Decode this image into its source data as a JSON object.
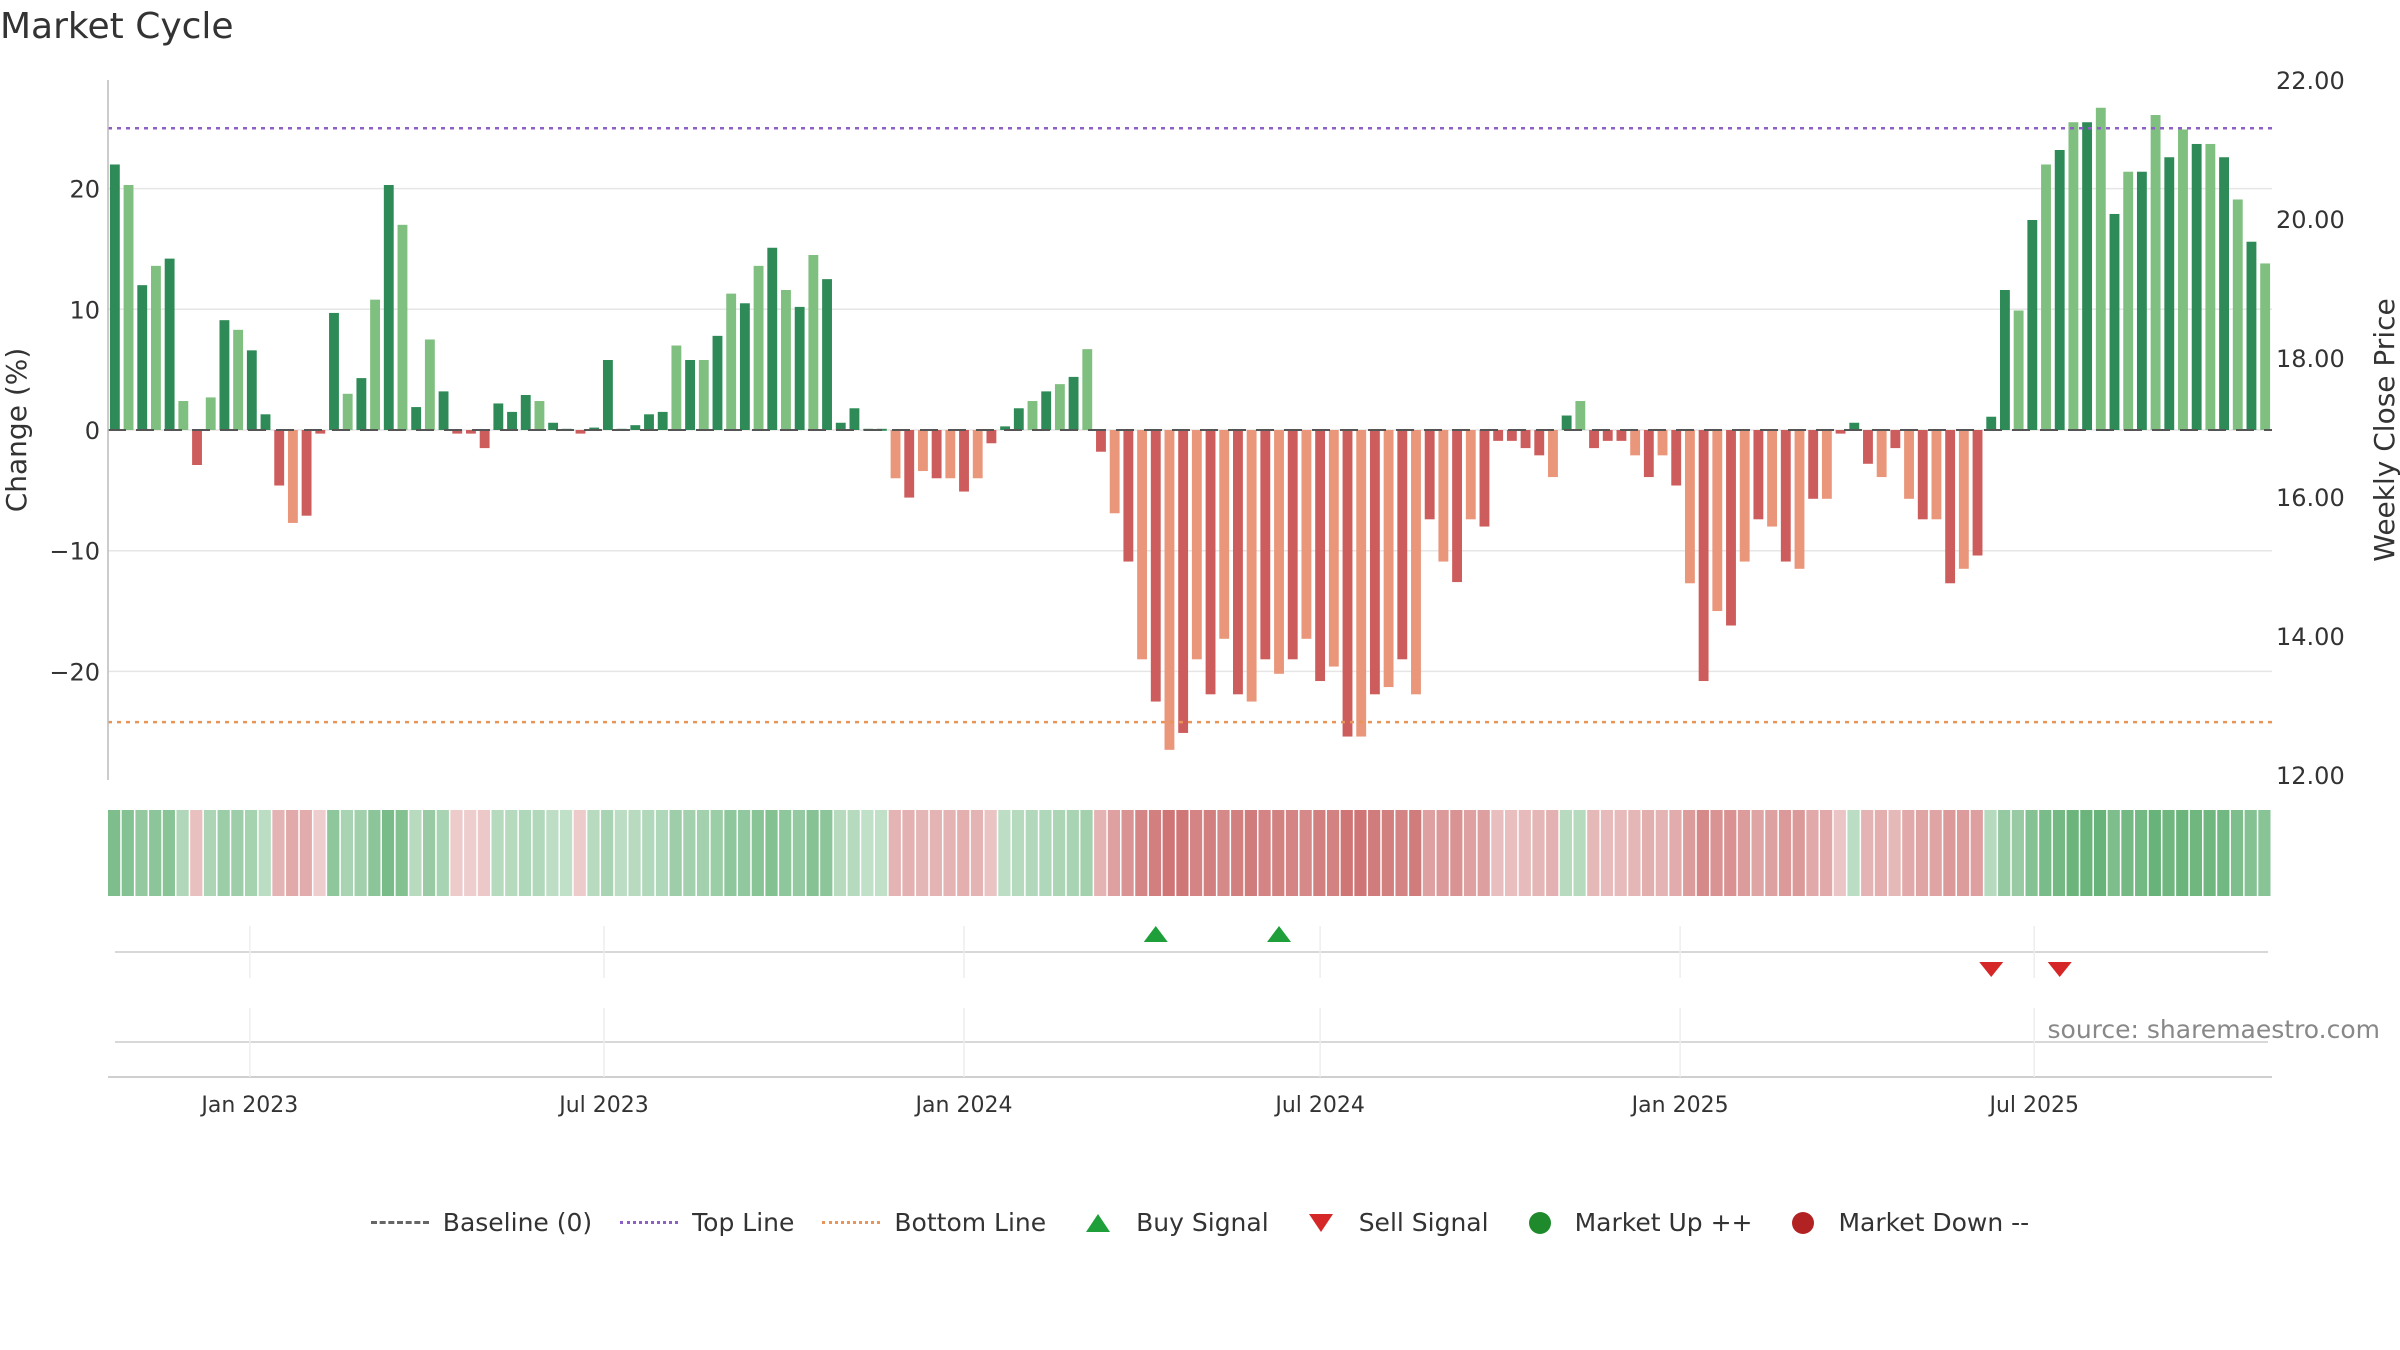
{
  "title": "Market Cycle",
  "source": "source: sharemaestro.com",
  "legend": {
    "baseline": "Baseline (0)",
    "top_line": "Top Line",
    "bottom_line": "Bottom Line",
    "buy_signal": "Buy Signal",
    "sell_signal": "Sell Signal",
    "market_up": "Market Up ++",
    "market_down": "Market Down --"
  },
  "colors": {
    "up_strong": "#2e8b57",
    "up_light": "#7fbf7f",
    "down_strong": "#cd5c5c",
    "down_light": "#e9967a",
    "top_line": "#8e5fc4",
    "bottom_line": "#e8955a",
    "buy": "#1e9f3a",
    "sell": "#d62728"
  },
  "chart_data": {
    "type": "bar",
    "title": "Market Cycle",
    "ylabel": "Change (%)",
    "y2label": "Weekly Close Price",
    "ylim": [
      -29,
      29
    ],
    "y2lim": [
      12,
      22
    ],
    "yticks": [
      -20,
      -10,
      0,
      10,
      20
    ],
    "ytick_labels": [
      "−20",
      "−10",
      "0",
      "10",
      "20"
    ],
    "y2ticks": [
      12,
      14,
      16,
      18,
      20,
      22
    ],
    "y2tick_labels": [
      "12.00",
      "14.00",
      "16.00",
      "18.00",
      "20.00",
      "22.00"
    ],
    "xticks": [
      "2023-01-01",
      "2023-07-01",
      "2024-01-01",
      "2024-07-01",
      "2025-01-01",
      "2025-07-01"
    ],
    "xtick_labels": [
      "Jan 2023",
      "Jul 2023",
      "Jan 2024",
      "Jul 2024",
      "Jan 2025",
      "Jul 2025"
    ],
    "first_week": "2022-10-24",
    "top_line": 25,
    "bottom_line": -24.2,
    "grid": true,
    "legend_position": "bottom",
    "values": [
      22,
      20.3,
      12,
      13.6,
      14.2,
      2.4,
      -2.9,
      2.7,
      9.1,
      8.3,
      6.6,
      1.3,
      -4.6,
      -7.7,
      -7.1,
      -0.3,
      9.7,
      3,
      4.3,
      10.8,
      20.3,
      17,
      1.9,
      7.5,
      3.2,
      -0.3,
      -0.3,
      -1.5,
      2.2,
      1.5,
      2.9,
      2.4,
      0.6,
      0.1,
      -0.3,
      0.2,
      5.8,
      0.1,
      0.4,
      1.3,
      1.5,
      7,
      5.8,
      5.8,
      7.8,
      11.3,
      10.5,
      13.6,
      15.1,
      11.6,
      10.2,
      14.5,
      12.5,
      0.6,
      1.8,
      0.1,
      0.1,
      -4,
      -5.6,
      -3.4,
      -4,
      -4,
      -5.1,
      -4,
      -1.1,
      0.3,
      1.8,
      2.4,
      3.2,
      3.8,
      4.4,
      6.7,
      -1.8,
      -6.9,
      -10.9,
      -19,
      -22.5,
      -26.5,
      -25.1,
      -19,
      -21.9,
      -17.3,
      -21.9,
      -22.5,
      -19,
      -20.2,
      -19,
      -17.3,
      -20.8,
      -19.6,
      -25.4,
      -25.4,
      -21.9,
      -21.3,
      -19,
      -21.9,
      -7.4,
      -10.9,
      -12.6,
      -7.4,
      -8,
      -0.9,
      -0.9,
      -1.5,
      -2.1,
      -3.9,
      1.2,
      2.4,
      -1.5,
      -0.9,
      -0.9,
      -2.1,
      -3.9,
      -2.1,
      -4.6,
      -12.7,
      -20.8,
      -15,
      -16.2,
      -10.9,
      -7.4,
      -8,
      -10.9,
      -11.5,
      -5.7,
      -5.7,
      -0.3,
      0.6,
      -2.8,
      -3.9,
      -1.5,
      -5.7,
      -7.4,
      -7.4,
      -12.7,
      -11.5,
      -10.4,
      1.1,
      11.6,
      9.9,
      17.4,
      22,
      23.2,
      25.5,
      25.5,
      26.7,
      17.9,
      21.4,
      21.4,
      26.1,
      22.6,
      24.9,
      23.7,
      23.7,
      22.6,
      19.1,
      15.6,
      13.8
    ],
    "week_strengths": [
      0.6,
      0.55,
      0.45,
      0.5,
      0.52,
      0.25,
      0.2,
      0.28,
      0.4,
      0.38,
      0.33,
      0.18,
      0.3,
      0.38,
      0.36,
      0.1,
      0.48,
      0.3,
      0.35,
      0.5,
      0.62,
      0.56,
      0.2,
      0.42,
      0.3,
      0.12,
      0.1,
      0.14,
      0.22,
      0.22,
      0.26,
      0.24,
      0.16,
      0.14,
      0.12,
      0.2,
      0.3,
      0.18,
      0.2,
      0.24,
      0.26,
      0.38,
      0.34,
      0.34,
      0.4,
      0.48,
      0.46,
      0.52,
      0.56,
      0.48,
      0.44,
      0.54,
      0.5,
      0.2,
      0.22,
      0.14,
      0.14,
      0.3,
      0.32,
      0.28,
      0.3,
      0.3,
      0.33,
      0.3,
      0.18,
      0.16,
      0.22,
      0.24,
      0.26,
      0.28,
      0.3,
      0.34,
      0.3,
      0.45,
      0.55,
      0.65,
      0.7,
      0.78,
      0.76,
      0.66,
      0.7,
      0.62,
      0.7,
      0.72,
      0.66,
      0.68,
      0.66,
      0.62,
      0.7,
      0.68,
      0.78,
      0.78,
      0.72,
      0.7,
      0.66,
      0.72,
      0.45,
      0.5,
      0.55,
      0.45,
      0.46,
      0.22,
      0.22,
      0.24,
      0.28,
      0.32,
      0.2,
      0.22,
      0.26,
      0.24,
      0.24,
      0.28,
      0.34,
      0.3,
      0.36,
      0.48,
      0.62,
      0.55,
      0.56,
      0.48,
      0.42,
      0.44,
      0.5,
      0.5,
      0.38,
      0.38,
      0.16,
      0.18,
      0.3,
      0.33,
      0.26,
      0.38,
      0.42,
      0.42,
      0.5,
      0.48,
      0.46,
      0.22,
      0.44,
      0.42,
      0.55,
      0.62,
      0.66,
      0.72,
      0.72,
      0.75,
      0.6,
      0.66,
      0.66,
      0.75,
      0.7,
      0.72,
      0.7,
      0.7,
      0.68,
      0.6,
      0.55,
      0.52
    ],
    "buy_signals": [
      "2024-04-08",
      "2024-06-10"
    ],
    "sell_signals": [
      "2025-06-09",
      "2025-07-14"
    ]
  }
}
